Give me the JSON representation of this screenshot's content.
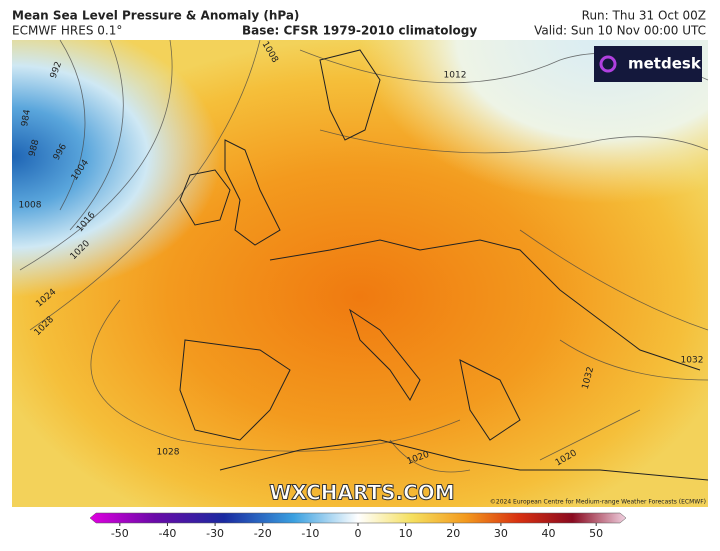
{
  "header": {
    "title": "Mean Sea Level Pressure & Anomaly (hPa)",
    "model": "ECMWF HRES 0.1°",
    "base": "Base: CFSR 1979-2010 climatology",
    "run": "Run: Thu 31 Oct 00Z",
    "valid": "Valid: Sun 10 Nov 00:00 UTC"
  },
  "logo": "metdesk",
  "contour_labels": [
    "984",
    "988",
    "992",
    "996",
    "1004",
    "1008",
    "1008",
    "1012",
    "1016",
    "1020",
    "1024",
    "1028",
    "1028",
    "1032",
    "1032",
    "1020",
    "1020"
  ],
  "watermark": "WXCHARTS.COM",
  "copyright": "©2024 European Centre for Medium-range Weather Forecasts (ECMWF)",
  "colorbar": {
    "lim": [
      -55,
      55
    ],
    "ticks": [
      -50,
      -40,
      -30,
      -20,
      -10,
      0,
      10,
      20,
      30,
      40,
      50
    ]
  }
}
